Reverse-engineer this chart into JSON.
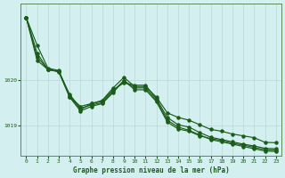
{
  "xlabel": "Graphe pression niveau de la mer (hPa)",
  "ylabel": "",
  "background_color": "#d4efef",
  "grid_color": "#b8d8d8",
  "line_color": "#1a5c1a",
  "x": [
    0,
    1,
    2,
    3,
    4,
    5,
    6,
    7,
    8,
    9,
    10,
    11,
    12,
    13,
    14,
    15,
    16,
    17,
    18,
    19,
    20,
    21,
    22,
    23
  ],
  "line1": [
    1021.35,
    1020.75,
    1020.25,
    1020.2,
    1019.65,
    1019.35,
    1019.48,
    1019.55,
    1019.82,
    1020.05,
    1019.85,
    1019.85,
    1019.62,
    1019.28,
    1019.18,
    1019.12,
    1019.02,
    1018.92,
    1018.88,
    1018.82,
    1018.78,
    1018.74,
    1018.64,
    1018.63
  ],
  "line2": [
    1021.35,
    1020.5,
    1020.22,
    1020.17,
    1019.62,
    1019.32,
    1019.42,
    1019.48,
    1019.72,
    1019.98,
    1019.78,
    1019.78,
    1019.52,
    1019.08,
    1018.93,
    1018.88,
    1018.78,
    1018.72,
    1018.68,
    1018.62,
    1018.58,
    1018.53,
    1018.48,
    1018.47
  ],
  "line3": [
    1021.35,
    1020.58,
    1020.22,
    1020.18,
    1019.63,
    1019.42,
    1019.48,
    1019.53,
    1019.78,
    1019.93,
    1019.88,
    1019.88,
    1019.58,
    1019.18,
    1019.02,
    1018.97,
    1018.85,
    1018.75,
    1018.7,
    1018.65,
    1018.6,
    1018.56,
    1018.51,
    1018.5
  ],
  "line4": [
    1021.35,
    1020.42,
    1020.22,
    1020.18,
    1019.68,
    1019.38,
    1019.45,
    1019.5,
    1019.75,
    1019.98,
    1019.82,
    1019.82,
    1019.55,
    1019.12,
    1018.97,
    1018.9,
    1018.8,
    1018.7,
    1018.65,
    1018.6,
    1018.55,
    1018.5,
    1018.45,
    1018.44
  ],
  "ylim": [
    1018.35,
    1021.65
  ],
  "yticks": [
    1019,
    1020
  ],
  "xlim": [
    -0.5,
    23.5
  ],
  "xticks": [
    0,
    1,
    2,
    3,
    4,
    5,
    6,
    7,
    8,
    9,
    10,
    11,
    12,
    13,
    14,
    15,
    16,
    17,
    18,
    19,
    20,
    21,
    22,
    23
  ]
}
